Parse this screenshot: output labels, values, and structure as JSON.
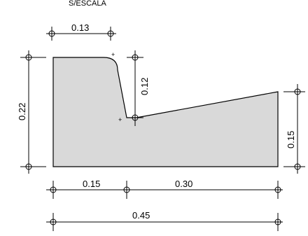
{
  "scale_note": "S/ESCALA",
  "dimensions": {
    "top_width": "0.13",
    "left_height": "0.22",
    "notch_depth": "0.12",
    "right_height": "0.15",
    "bottom_left": "0.15",
    "bottom_right": "0.30",
    "total_width": "0.45"
  },
  "colors": {
    "section_fill": "#d9d9d9",
    "line": "#000000"
  }
}
